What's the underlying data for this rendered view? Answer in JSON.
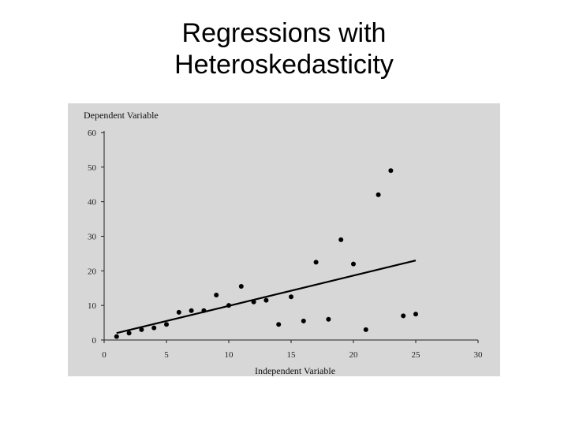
{
  "slide": {
    "title_line1": "Regressions with",
    "title_line2": "Heteroskedasticity"
  },
  "chart_data": {
    "type": "scatter",
    "title": "",
    "xlabel": "Independent Variable",
    "ylabel": "Dependent Variable",
    "xlim": [
      0,
      30
    ],
    "ylim": [
      0,
      60
    ],
    "xticks": [
      0,
      5,
      10,
      15,
      20,
      25,
      30
    ],
    "yticks": [
      0,
      10,
      20,
      30,
      40,
      50,
      60
    ],
    "grid": false,
    "background": "#d7d7d7",
    "point_color": "#000000",
    "points": [
      {
        "x": 1,
        "y": 1
      },
      {
        "x": 2,
        "y": 2
      },
      {
        "x": 3,
        "y": 3
      },
      {
        "x": 4,
        "y": 3.5
      },
      {
        "x": 5,
        "y": 4.5
      },
      {
        "x": 6,
        "y": 8
      },
      {
        "x": 7,
        "y": 8.5
      },
      {
        "x": 8,
        "y": 8.5
      },
      {
        "x": 9,
        "y": 13
      },
      {
        "x": 10,
        "y": 10
      },
      {
        "x": 11,
        "y": 15.5
      },
      {
        "x": 12,
        "y": 11
      },
      {
        "x": 13,
        "y": 11.5
      },
      {
        "x": 14,
        "y": 4.5
      },
      {
        "x": 15,
        "y": 12.5
      },
      {
        "x": 16,
        "y": 5.5
      },
      {
        "x": 17,
        "y": 22.5
      },
      {
        "x": 18,
        "y": 6
      },
      {
        "x": 19,
        "y": 29
      },
      {
        "x": 20,
        "y": 22
      },
      {
        "x": 21,
        "y": 3
      },
      {
        "x": 22,
        "y": 42
      },
      {
        "x": 23,
        "y": 49
      },
      {
        "x": 24,
        "y": 7
      },
      {
        "x": 25,
        "y": 7.5
      }
    ],
    "regression_line": {
      "x": [
        1,
        25
      ],
      "y": [
        2,
        23
      ]
    }
  }
}
